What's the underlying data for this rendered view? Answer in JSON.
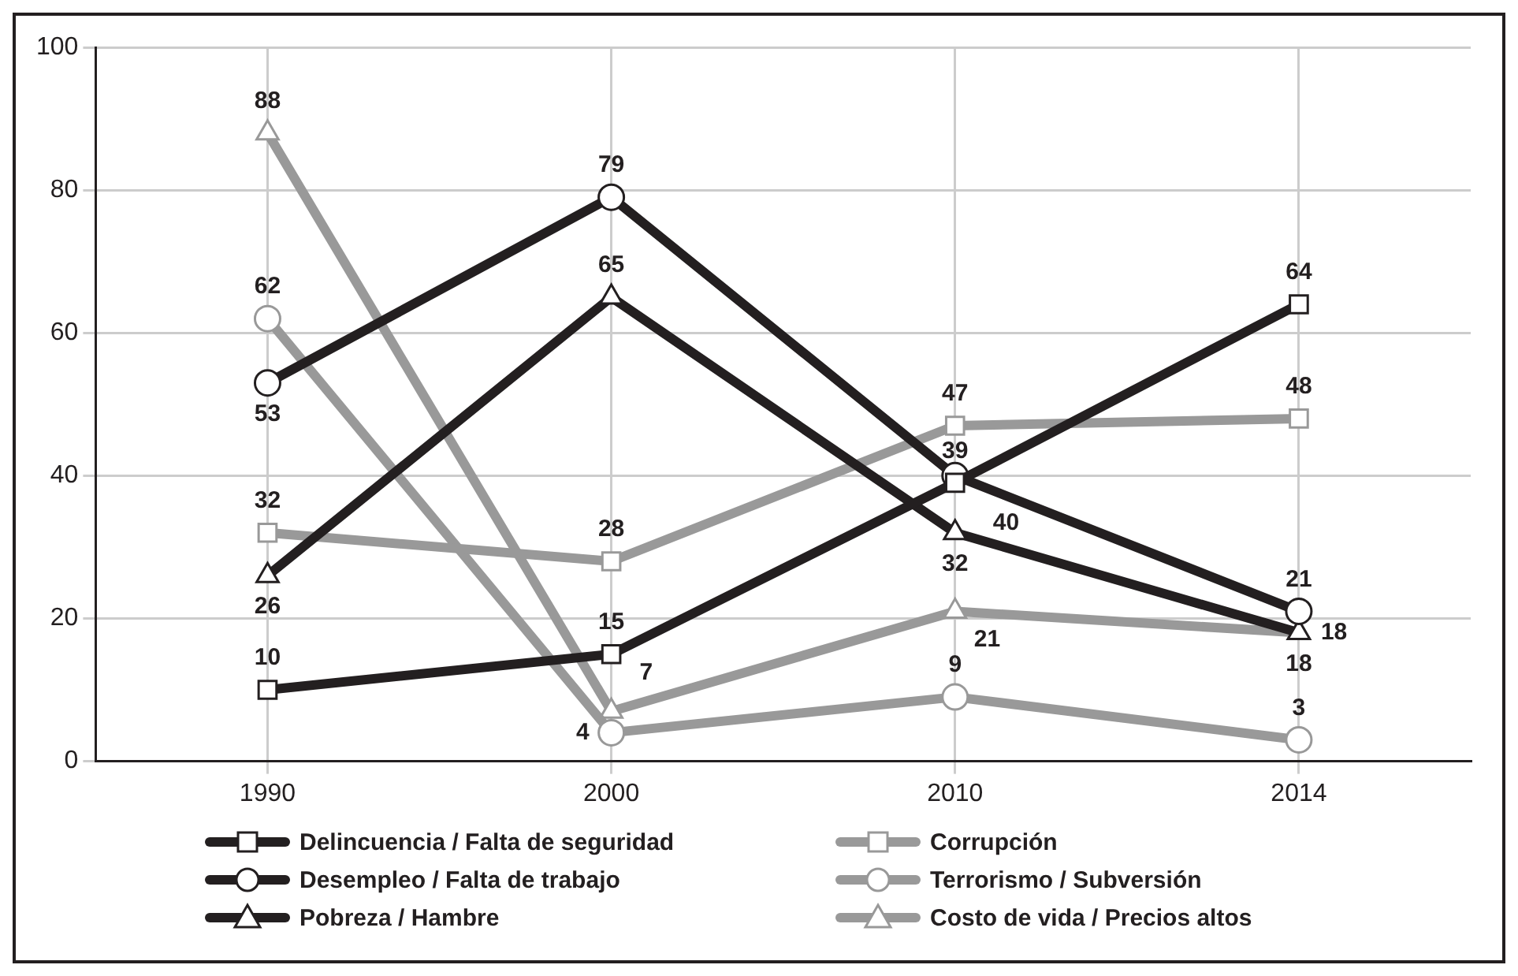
{
  "chart_data": {
    "type": "line",
    "categories": [
      "1990",
      "2000",
      "2010",
      "2014"
    ],
    "ylim": [
      0,
      100
    ],
    "yticks": [
      0,
      20,
      40,
      60,
      80,
      100
    ],
    "grid": true,
    "legend": "bottom",
    "data_labels": true,
    "line_style": "solid",
    "series": [
      {
        "name": "Delincuencia / Falta de seguridad",
        "color": "#231f20",
        "marker": "square",
        "values": [
          10,
          15,
          39,
          64
        ]
      },
      {
        "name": "Desempleo / Falta de trabajo",
        "color": "#231f20",
        "marker": "circle",
        "values": [
          53,
          79,
          40,
          21
        ]
      },
      {
        "name": "Pobreza / Hambre",
        "color": "#231f20",
        "marker": "triangle",
        "values": [
          26,
          65,
          32,
          18
        ]
      },
      {
        "name": "Corrupción",
        "color": "#999999",
        "marker": "square",
        "values": [
          32,
          28,
          47,
          48
        ]
      },
      {
        "name": "Terrorismo / Subversión",
        "color": "#999999",
        "marker": "circle",
        "values": [
          62,
          4,
          9,
          3
        ]
      },
      {
        "name": "Costo de vida / Precios altos",
        "color": "#999999",
        "marker": "triangle",
        "values": [
          88,
          7,
          21,
          18
        ]
      }
    ]
  }
}
